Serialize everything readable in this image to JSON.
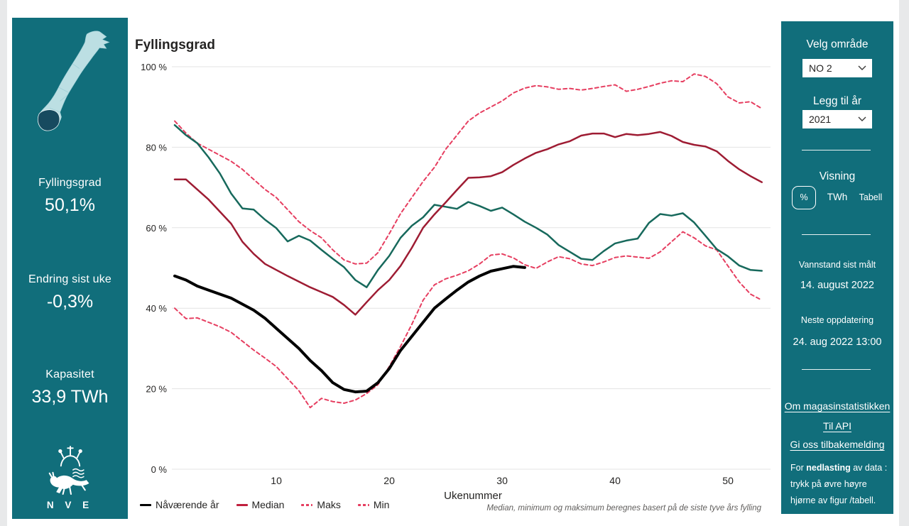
{
  "colors": {
    "teal": "#116e7b",
    "map_light": "#bcdfe3",
    "map_dark": "#174a5f",
    "map_border": "#9fcfd6",
    "grid": "#e3e3e3",
    "median": "#9e1c33",
    "extremes": "#e63e60",
    "year_added": "#17695c",
    "current_year": "#000000"
  },
  "left_panel": {
    "fyllingsgrad_label": "Fyllingsgrad",
    "fyllingsgrad_value": "50,1%",
    "endring_label": "Endring sist uke",
    "endring_value": "-0,3%",
    "kapasitet_label": "Kapasitet",
    "kapasitet_value": "33,9 TWh",
    "logo_text": "N V E"
  },
  "right_panel": {
    "velg_omrade_label": "Velg område",
    "omrade_value": "NO 2",
    "legg_til_ar_label": "Legg til år",
    "ar_value": "2021",
    "visning_label": "Visning",
    "visning_options": [
      "%",
      "TWh",
      "Tabell"
    ],
    "vannstand_label": "Vannstand sist målt",
    "vannstand_value": "14. august 2022",
    "neste_label": "Neste oppdatering",
    "neste_value": "24. aug 2022 13:00",
    "links": [
      "Om magasinstatistikken",
      "Til API",
      "Gi oss tilbakemelding"
    ],
    "note_prefix": "For ",
    "note_bold": "nedlasting",
    "note_suffix": " av data : trykk på øvre høyre hjørne av figur /tabell."
  },
  "chart_data": {
    "type": "line",
    "title": "Fyllingsgrad",
    "xlabel": "Ukenummer",
    "footnote": "Median, minimum og maksimum beregnes basert på de siste tyve års fylling",
    "xlim": [
      1,
      53
    ],
    "ylim": [
      0,
      100
    ],
    "grid": true,
    "legend_position": "bottom-left",
    "x_ticks": [
      10,
      20,
      30,
      40,
      50
    ],
    "y_ticks": [
      {
        "value": 0,
        "label": "0 %"
      },
      {
        "value": 20,
        "label": "20 %"
      },
      {
        "value": 40,
        "label": "40 %"
      },
      {
        "value": 60,
        "label": "60 %"
      },
      {
        "value": 80,
        "label": "80 %"
      },
      {
        "value": 100,
        "label": "100 %"
      }
    ],
    "series": [
      {
        "key": "maks",
        "name": "Maks",
        "color": "#e63e60",
        "width": 2,
        "dash": "5 4",
        "start_week": 1,
        "values": [
          86.5,
          83.5,
          81,
          79.5,
          78,
          76.5,
          74.5,
          72,
          69.5,
          67.5,
          64.5,
          61.5,
          59.3,
          57.5,
          54.5,
          52,
          51,
          51.2,
          53.8,
          58.5,
          63.5,
          67.5,
          71.5,
          75,
          79.5,
          83,
          86.5,
          88.5,
          90,
          91.5,
          93.5,
          94.7,
          95.3,
          95,
          94.4,
          94.6,
          94.2,
          94.6,
          95.1,
          95.5,
          93.9,
          94.4,
          95.1,
          95.9,
          96.5,
          96.3,
          98.2,
          97.6,
          95.8,
          92.5,
          91,
          91.3,
          89.6
        ]
      },
      {
        "key": "min",
        "name": "Min",
        "color": "#e63e60",
        "width": 2,
        "dash": "5 4",
        "start_week": 1,
        "values": [
          40,
          37.4,
          37.6,
          36.5,
          35.4,
          34,
          31.8,
          29.6,
          27.6,
          25.5,
          22.5,
          19.5,
          15.3,
          17.6,
          16.8,
          16.4,
          17.2,
          18.8,
          21,
          25.5,
          30.5,
          36,
          42,
          45.8,
          47.3,
          48.2,
          49.3,
          51,
          53.2,
          53.5,
          52.5,
          50.8,
          49.9,
          51.5,
          52.8,
          52.3,
          51,
          50.6,
          51.5,
          52.6,
          53,
          52.7,
          52.4,
          54,
          56.5,
          59,
          57.5,
          55.5,
          54.5,
          50.5,
          46.5,
          43.5,
          42
        ]
      },
      {
        "key": "year2021",
        "name": "2021",
        "color": "#17695c",
        "width": 2.5,
        "dash": null,
        "start_week": 1,
        "values": [
          85.5,
          83,
          81,
          77.5,
          73.5,
          68.5,
          64.8,
          64.5,
          62,
          59.9,
          56.6,
          58,
          56.8,
          54.5,
          52.3,
          50.2,
          47,
          45.2,
          49.5,
          53,
          57.5,
          60.5,
          62.6,
          65.7,
          65.2,
          64.7,
          66.4,
          65.4,
          64.2,
          65,
          63.3,
          61.5,
          60,
          58.3,
          55.7,
          54,
          52.3,
          52,
          54.2,
          56.1,
          56.8,
          57.3,
          61.2,
          63.4,
          63,
          63.6,
          61.3,
          58,
          54.7,
          52.9,
          50.6,
          49.5,
          49.3
        ]
      },
      {
        "key": "median",
        "name": "Median",
        "color": "#9e1c33",
        "width": 2.5,
        "dash": null,
        "start_week": 1,
        "values": [
          72,
          72,
          69.5,
          67,
          64,
          61,
          56.5,
          53.5,
          51,
          49.5,
          48,
          46.6,
          45.2,
          44,
          42.8,
          40.8,
          38.4,
          41.5,
          44.5,
          47,
          50.5,
          55,
          60,
          63.3,
          66.3,
          69.4,
          72.4,
          72.5,
          72.8,
          73.8,
          75.6,
          77.2,
          78.6,
          79.5,
          80.7,
          81.5,
          82.9,
          83.4,
          83.4,
          82.5,
          83.3,
          83,
          83.3,
          83.8,
          82.8,
          81.3,
          80.6,
          80.2,
          79,
          76.6,
          74.5,
          72.8,
          71.3
        ]
      },
      {
        "key": "current",
        "name": "Nåværende år",
        "color": "#000000",
        "width": 4,
        "dash": null,
        "start_week": 1,
        "values": [
          48,
          47,
          45.5,
          44.5,
          43.5,
          42.5,
          41,
          39.5,
          37.5,
          35,
          32.5,
          30,
          27,
          24.5,
          21.5,
          19.8,
          19.2,
          19.4,
          21.5,
          25,
          29.5,
          33,
          36.5,
          40,
          42.3,
          44.5,
          46.5,
          48,
          49.2,
          49.8,
          50.4,
          50.1
        ]
      }
    ],
    "legend": [
      {
        "key": "current",
        "label": "Nåværende år",
        "color": "#000000",
        "dash": false
      },
      {
        "key": "median",
        "label": "Median",
        "color": "#c0203e",
        "dash": false
      },
      {
        "key": "maks",
        "label": "Maks",
        "color": "#e63e60",
        "dash": true
      },
      {
        "key": "min",
        "label": "Min",
        "color": "#e63e60",
        "dash": true
      }
    ]
  }
}
